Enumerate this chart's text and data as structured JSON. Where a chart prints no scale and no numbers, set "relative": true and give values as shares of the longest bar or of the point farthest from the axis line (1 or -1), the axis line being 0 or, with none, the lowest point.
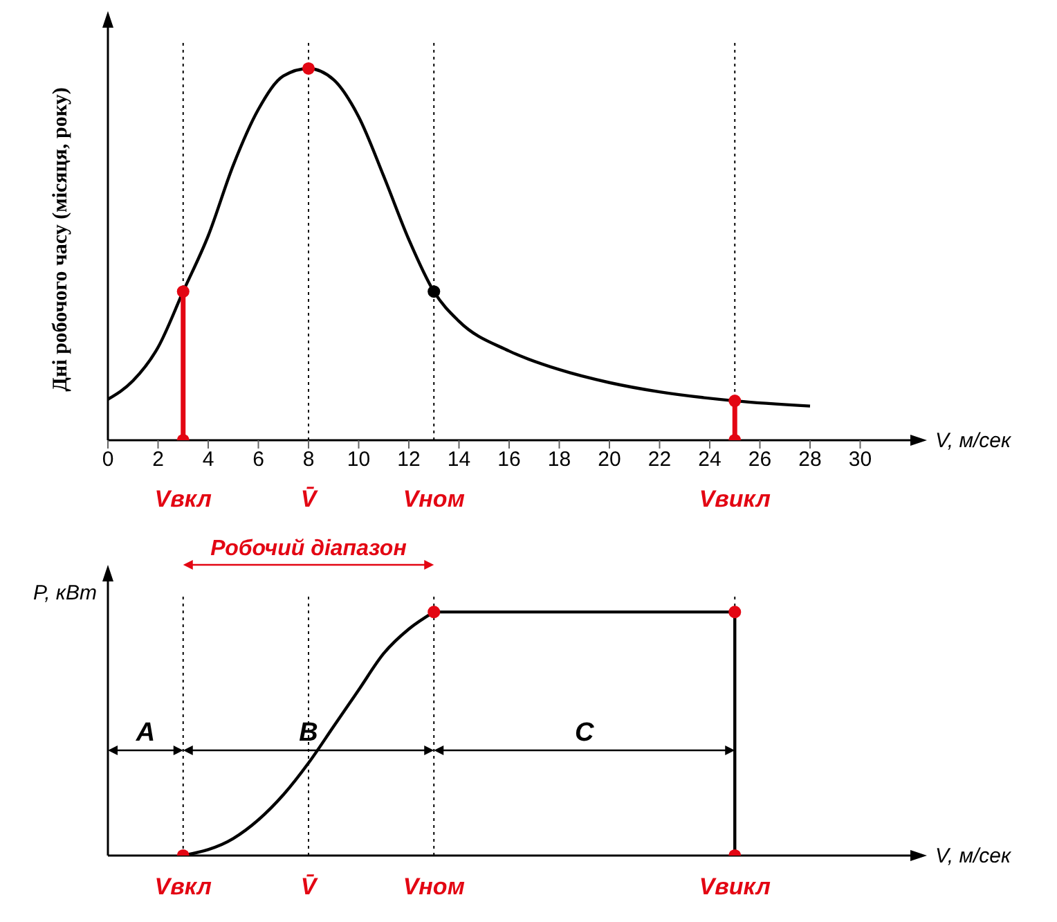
{
  "chart_data": [
    {
      "type": "line",
      "ylabel": "Дні робочого часу (місяця, року)",
      "xlabel": "V, м/сек",
      "relative": true,
      "xlim": [
        0,
        32
      ],
      "xticks": [
        0,
        2,
        4,
        6,
        8,
        10,
        12,
        14,
        16,
        18,
        20,
        22,
        24,
        26,
        28,
        30
      ],
      "tick_labels": "x",
      "grid": false,
      "legend": false,
      "ref_lines": [
        {
          "axis": "x",
          "value": 3,
          "label": "Vвкл",
          "color": "#000000",
          "line_style": "dotted"
        },
        {
          "axis": "x",
          "value": 8,
          "label": "V̄",
          "color": "#000000",
          "line_style": "dotted"
        },
        {
          "axis": "x",
          "value": 13,
          "label": "Vном",
          "color": "#000000",
          "line_style": "dotted"
        },
        {
          "axis": "x",
          "value": 25,
          "label": "Vвикл",
          "color": "#000000",
          "line_style": "dotted"
        }
      ],
      "series": [
        {
          "color": "#000000",
          "marker": "none",
          "x": [
            0,
            1,
            2,
            3,
            4,
            5,
            6,
            7,
            8,
            9,
            10,
            11,
            12,
            13,
            14,
            16,
            18,
            20,
            22,
            25,
            28
          ],
          "values": [
            0.11,
            0.16,
            0.25,
            0.4,
            0.55,
            0.74,
            0.89,
            0.98,
            1,
            0.97,
            0.87,
            0.71,
            0.54,
            0.4,
            0.32,
            0.24,
            0.19,
            0.155,
            0.13,
            0.106,
            0.092
          ]
        },
        {
          "type": "line",
          "color": "#e30613",
          "marker": "none",
          "x": [
            3,
            3
          ],
          "values": [
            0,
            0.4
          ]
        },
        {
          "type": "line",
          "color": "#e30613",
          "marker": "none",
          "x": [
            25,
            25
          ],
          "values": [
            0,
            0.106
          ]
        },
        {
          "type": "scatter",
          "color": "#e30613",
          "marker": "circle",
          "x": [
            3,
            8,
            25,
            3,
            25
          ],
          "values": [
            0.4,
            1,
            0.106,
            0,
            0
          ]
        },
        {
          "type": "scatter",
          "color": "#000000",
          "marker": "circle",
          "x": [
            13
          ],
          "values": [
            0.4
          ]
        }
      ]
    },
    {
      "type": "line",
      "ylabel": "P, кВт",
      "xlabel": "V, м/сек",
      "relative": true,
      "xlim": [
        0,
        32
      ],
      "tick_labels": false,
      "grid": false,
      "legend": false,
      "ref_lines": [
        {
          "axis": "x",
          "value": 3,
          "label": "Vвкл",
          "color": "#000000",
          "line_style": "dotted"
        },
        {
          "axis": "x",
          "value": 8,
          "label": "V̄",
          "color": "#000000",
          "line_style": "dotted"
        },
        {
          "axis": "x",
          "value": 13,
          "label": "Vном",
          "color": "#000000",
          "line_style": "dotted"
        },
        {
          "axis": "x",
          "value": 25,
          "label": "Vвикл",
          "color": "#000000",
          "line_style": "dotted"
        }
      ],
      "annotations": [
        "Робочий діапазон",
        "A",
        "B",
        "C"
      ],
      "series": [
        {
          "color": "#000000",
          "marker": "none",
          "x": [
            3,
            5,
            7,
            8,
            9,
            10,
            11,
            12,
            13
          ],
          "values": [
            0,
            0.07,
            0.25,
            0.38,
            0.53,
            0.68,
            0.83,
            0.93,
            1
          ]
        },
        {
          "color": "#000000",
          "marker": "none",
          "x": [
            13,
            25,
            25
          ],
          "values": [
            1,
            1,
            0
          ]
        },
        {
          "type": "scatter",
          "color": "#e30613",
          "marker": "circle",
          "x": [
            3,
            13,
            25,
            25
          ],
          "values": [
            0,
            1,
            1,
            0
          ]
        }
      ]
    }
  ]
}
